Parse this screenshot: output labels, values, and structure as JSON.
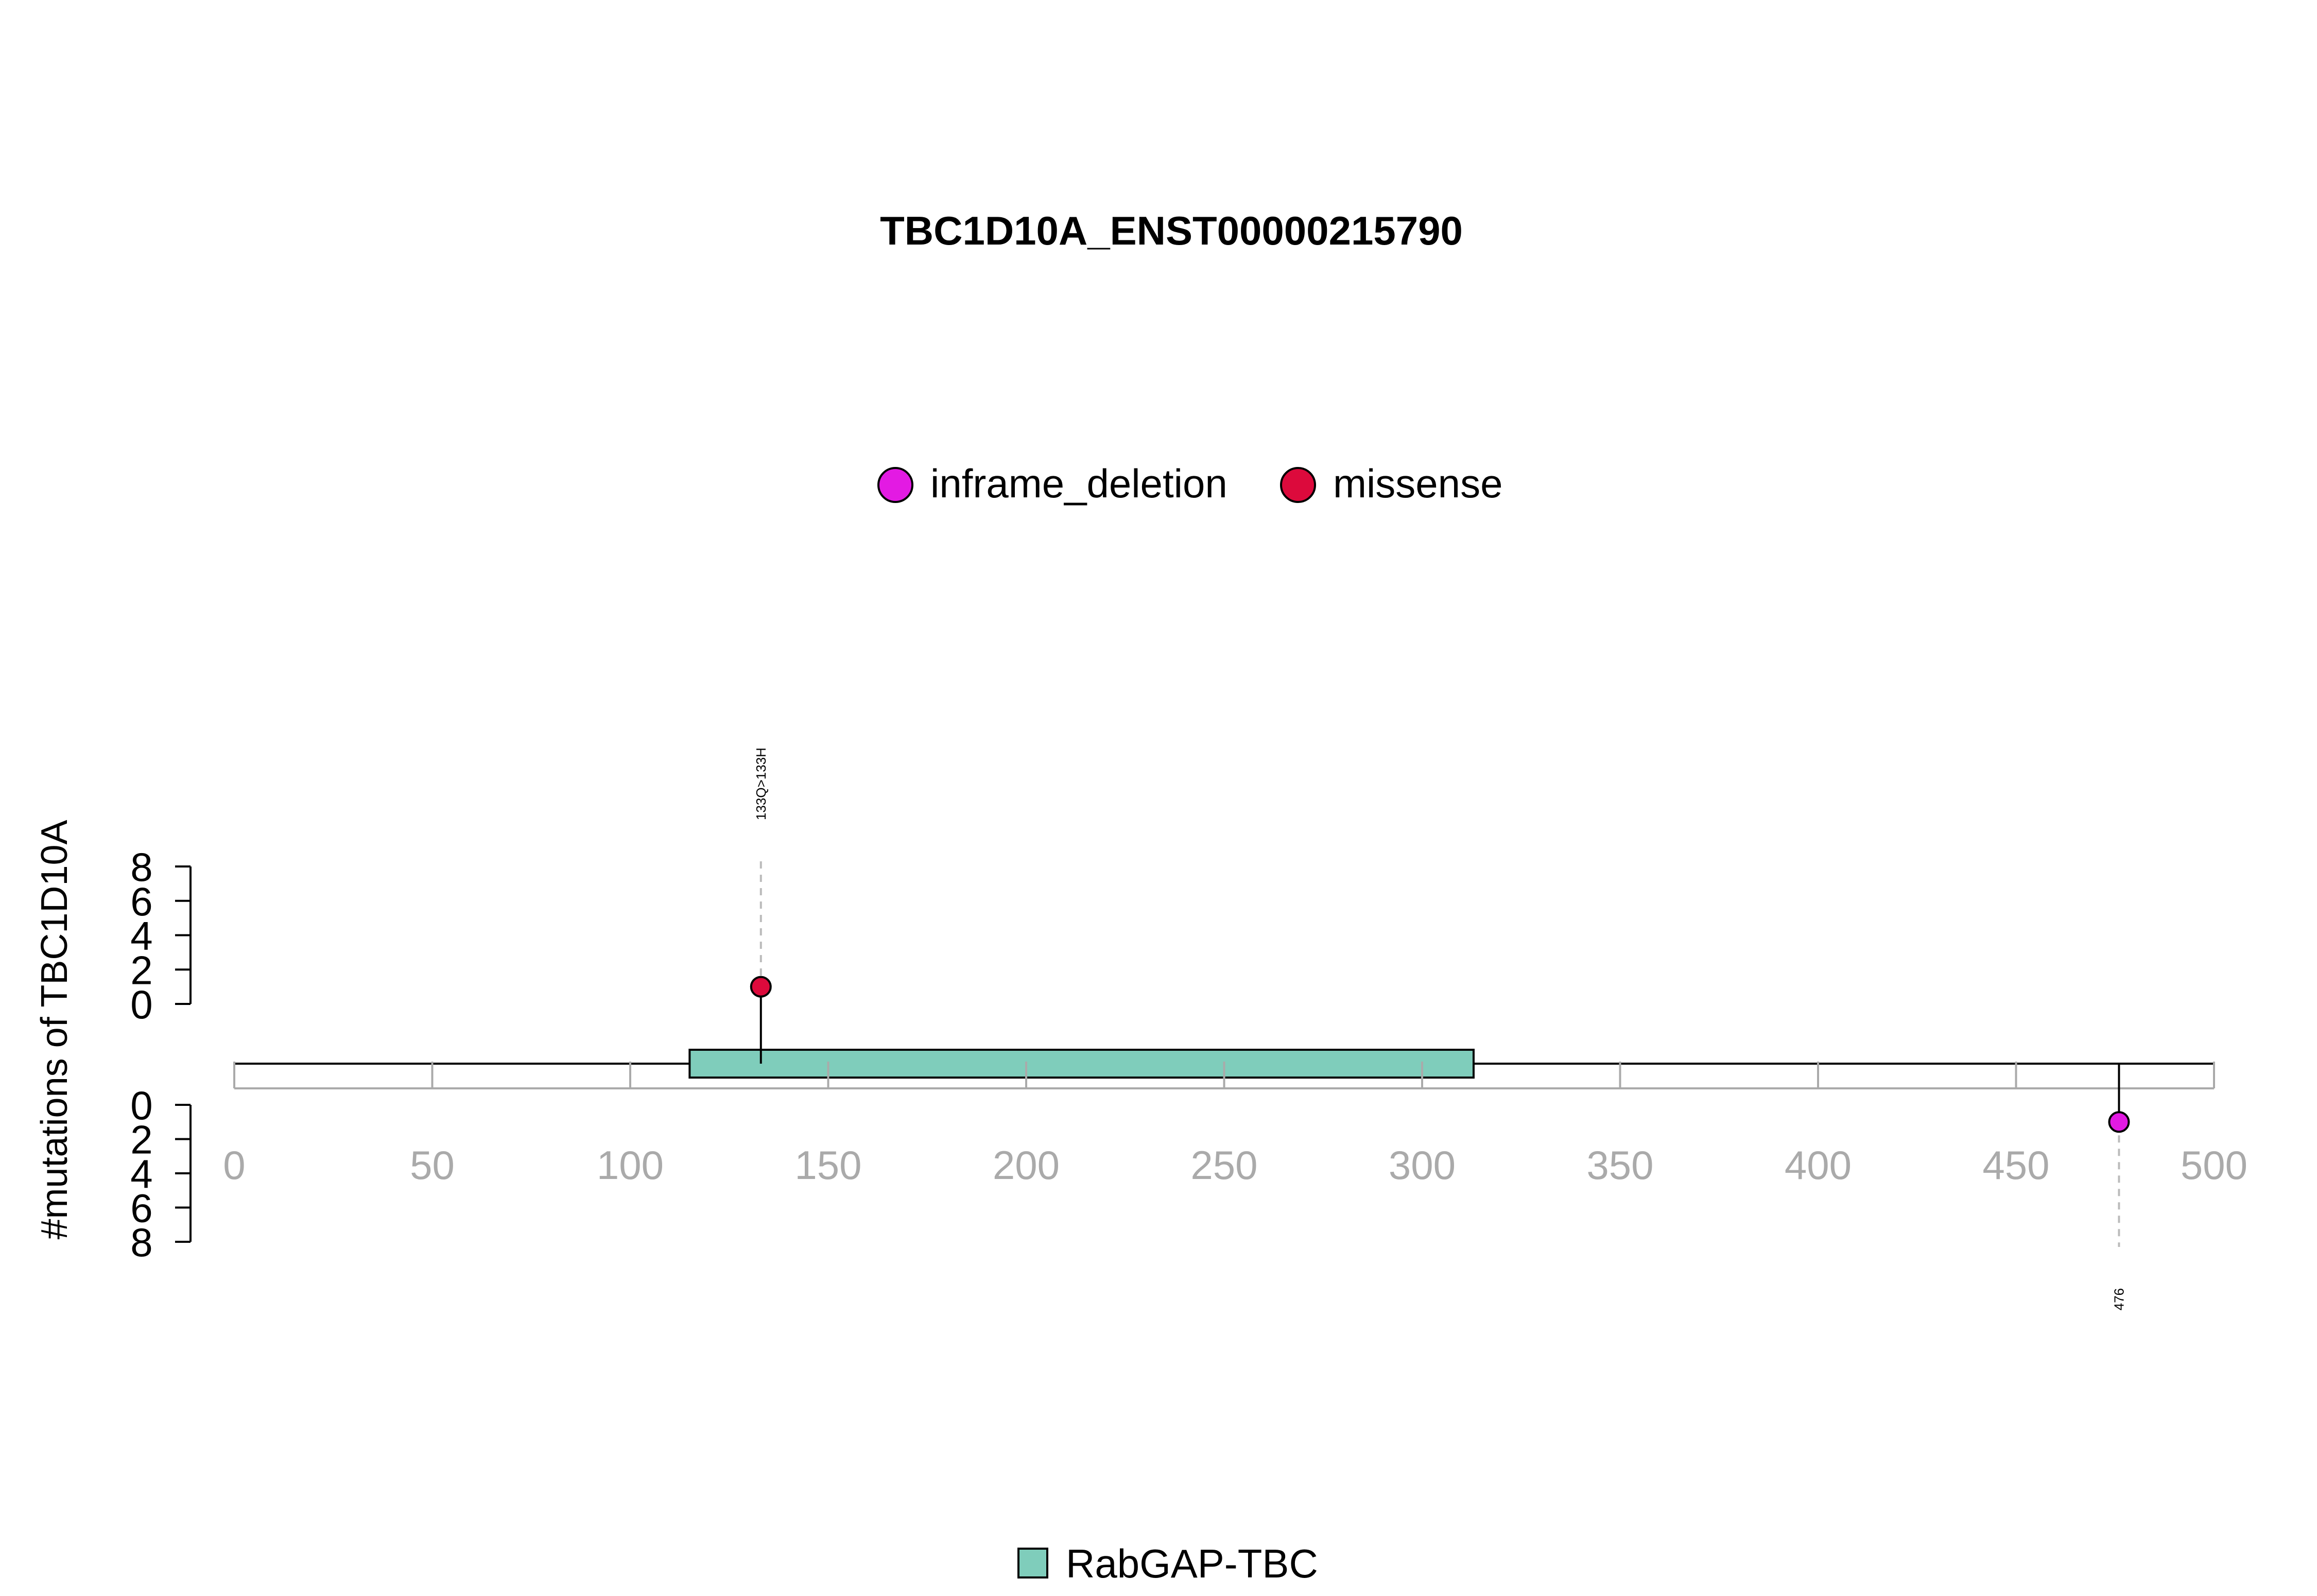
{
  "chart_data": {
    "type": "lollipop",
    "title": "TBC1D10A_ENST00000215790",
    "ylabel": "#mutations of TBC1D10A",
    "xlabel": "",
    "xlim": [
      0,
      500
    ],
    "x_ticks": [
      0,
      50,
      100,
      150,
      200,
      250,
      300,
      350,
      400,
      450,
      500
    ],
    "y_ticks": [
      0,
      2,
      4,
      6,
      8
    ],
    "ylim": [
      0,
      8
    ],
    "protein_length": 500,
    "legend": [
      {
        "name": "inframe_deletion",
        "color": "#E31AE3"
      },
      {
        "name": "missense",
        "color": "#DC0A3C"
      }
    ],
    "domains": [
      {
        "name": "RabGAP-TBC",
        "start": 115,
        "end": 313,
        "color": "#7FCDBB"
      }
    ],
    "mutations": [
      {
        "position": 133,
        "count": 1,
        "type": "missense",
        "label": "133Q>133H",
        "side": "top"
      },
      {
        "position": 476,
        "count": 1,
        "type": "inframe_deletion",
        "label": "476",
        "side": "bottom"
      }
    ],
    "grid": false,
    "legend_position": "top-center"
  }
}
